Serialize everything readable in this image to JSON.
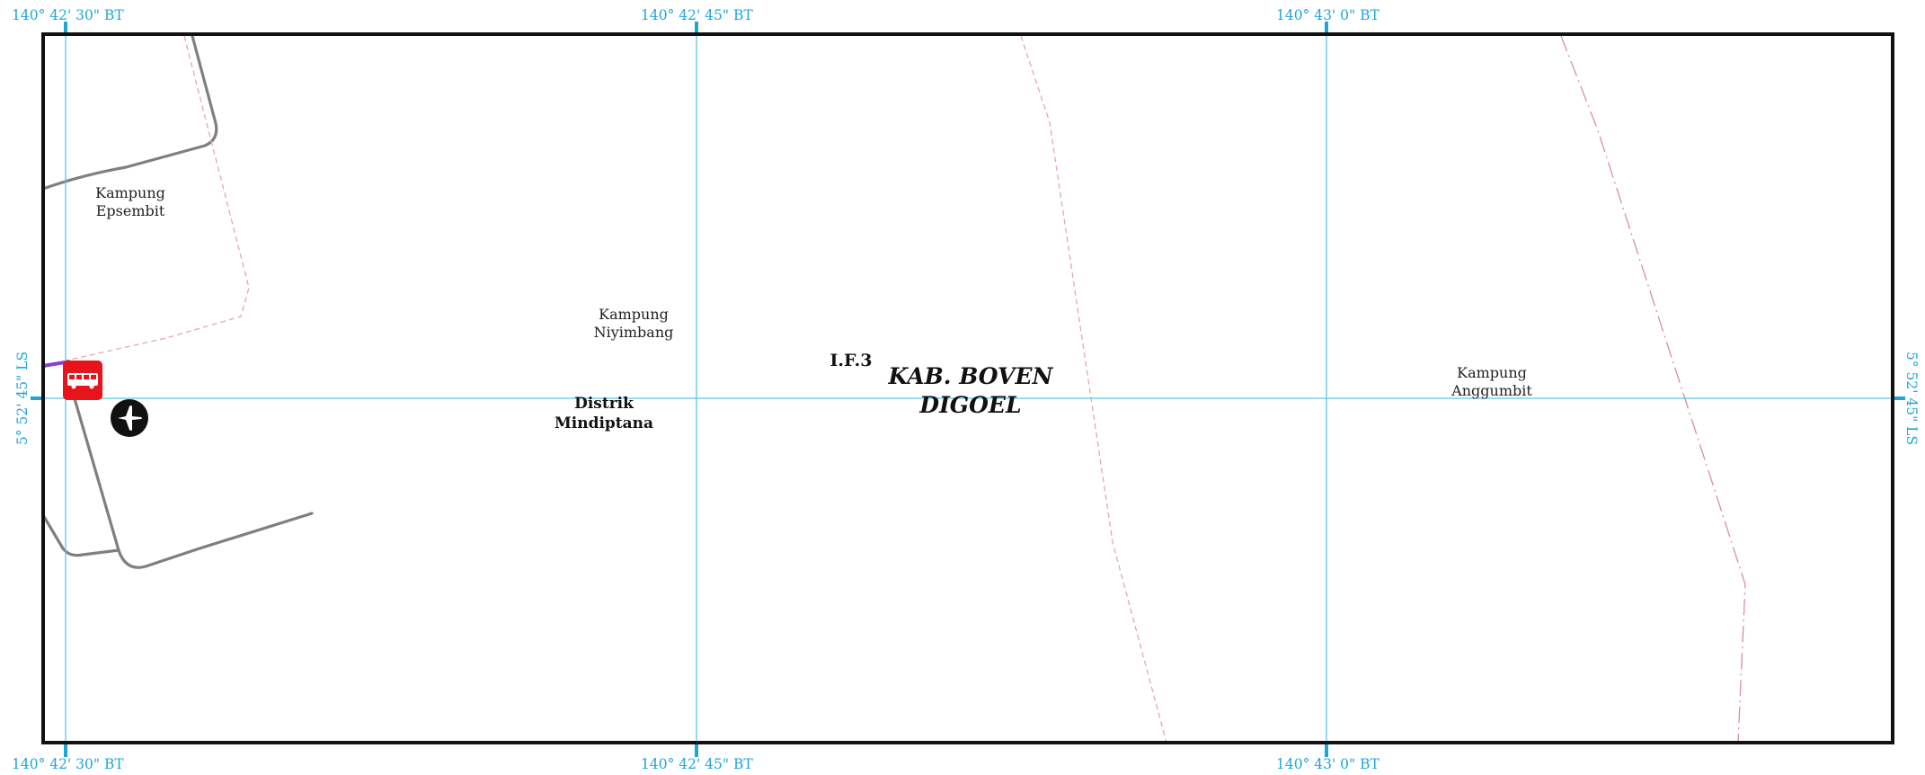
{
  "map": {
    "colors": {
      "grid": "#5cc7e6",
      "grid_text": "#1fa6d6",
      "frame": "#111111",
      "road": "#7f7f7f",
      "boundary_village": "#e3a9a9",
      "boundary_district": "#d88f9a",
      "road_purple": "#8a3fd1",
      "bus_icon_bg": "#e8141b"
    },
    "grid_labels": {
      "lon_1": "140° 42' 30\" BT",
      "lon_2": "140° 42' 45\" BT",
      "lon_3": "140° 43' 0\" BT",
      "lat_1": "5° 52' 45\" LS"
    },
    "places": {
      "epsembit_line1": "Kampung",
      "epsembit_line2": "Epsembit",
      "niyimbang_line1": "Kampung",
      "niyimbang_line2": "Niyimbang",
      "anggumbit_line1": "Kampung",
      "anggumbit_line2": "Anggumbit",
      "distrik_line1": "Distrik",
      "distrik_line2": "Mindiptana",
      "code": "I.F.3",
      "kab_line1": "KAB. BOVEN",
      "kab_line2": "DIGOEL"
    },
    "icons": {
      "bus": "bus-stop-icon",
      "airport": "airport-icon"
    }
  }
}
